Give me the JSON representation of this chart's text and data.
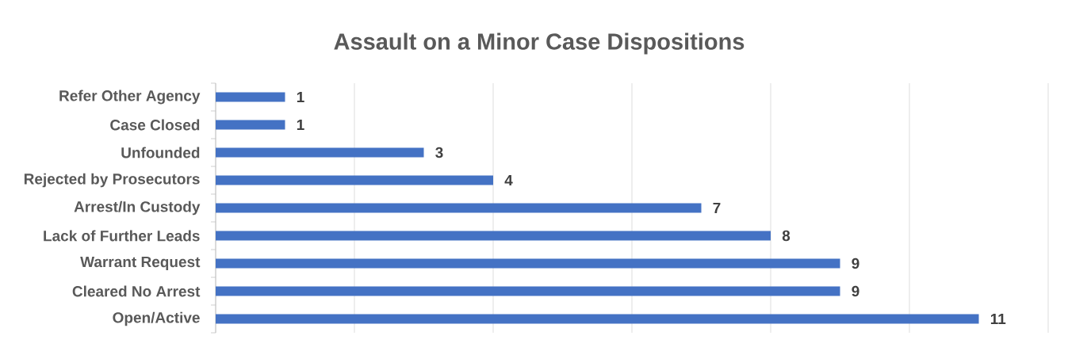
{
  "chart_data": {
    "type": "bar",
    "orientation": "horizontal",
    "title": "Assault on a Minor Case Dispositions",
    "categories": [
      "Refer Other Agency",
      "Case Closed",
      "Unfounded",
      "Rejected by Prosecutors",
      "Arrest/In Custody",
      "Lack of Further Leads",
      "Warrant Request",
      "Cleared No Arrest",
      "Open/Active"
    ],
    "values": [
      1,
      1,
      3,
      4,
      7,
      8,
      9,
      9,
      11
    ],
    "color": "#4472c4",
    "xlim": [
      0,
      12
    ],
    "xticks": [
      {
        "value": 0,
        "label": null
      },
      {
        "value": 2,
        "label": null
      },
      {
        "value": 4,
        "label": null
      },
      {
        "value": 6,
        "label": null
      },
      {
        "value": 8,
        "label": null
      },
      {
        "value": 10,
        "label": null
      },
      {
        "value": 12,
        "label": null
      }
    ],
    "grid": "x",
    "tick_labels": "y",
    "data_labels": true
  }
}
